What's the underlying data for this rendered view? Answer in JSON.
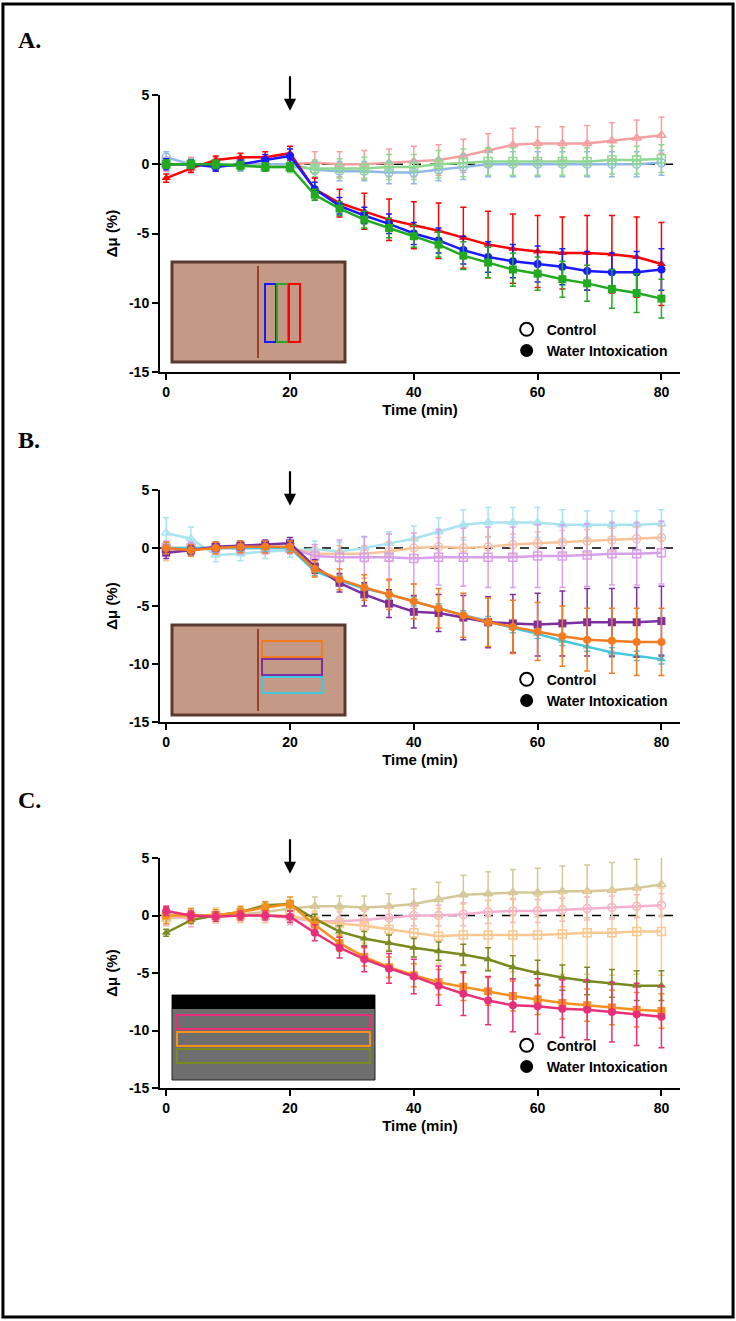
{
  "chart_data": [
    {
      "type": "line",
      "title": "A.",
      "x_label": "Time (min)",
      "y_label": "Δμ (%)",
      "x": [
        0,
        4,
        8,
        12,
        16,
        20,
        24,
        28,
        32,
        36,
        40,
        44,
        48,
        52,
        56,
        60,
        64,
        68,
        72,
        76,
        80
      ],
      "xlim": [
        -1,
        83
      ],
      "xticks": [
        0,
        20,
        40,
        60,
        80
      ],
      "ylim": [
        -15,
        5
      ],
      "yticks": [
        -15,
        -10,
        -5,
        0,
        5
      ],
      "arrow_x": 20,
      "legend": "lower right",
      "grid": false,
      "series": [
        {
          "name": "Control",
          "color": "#f4a0a0",
          "marker": "triangle-up-open",
          "line_style": "solid",
          "values": [
            0,
            0,
            0,
            0,
            0,
            0,
            0.1,
            0,
            0,
            0.1,
            0.2,
            0.3,
            0.6,
            1.0,
            1.4,
            1.5,
            1.5,
            1.5,
            1.7,
            1.9,
            2.1
          ],
          "error": [
            0.5,
            0.5,
            0.5,
            0.5,
            0.5,
            0.6,
            0.8,
            0.9,
            1.0,
            1.0,
            1.1,
            1.1,
            1.2,
            1.2,
            1.2,
            1.2,
            1.2,
            1.3,
            1.3,
            1.3,
            1.3
          ]
        },
        {
          "name": "Control",
          "color": "#90b8e8",
          "marker": "circle-open",
          "line_style": "solid",
          "values": [
            0.5,
            0,
            -0.1,
            -0.1,
            0,
            0,
            -0.4,
            -0.5,
            -0.5,
            -0.6,
            -0.6,
            -0.4,
            -0.2,
            0,
            0,
            0,
            0,
            0,
            0,
            0,
            0.1
          ],
          "error": [
            0.4,
            0.4,
            0.4,
            0.4,
            0.4,
            0.4,
            0.6,
            0.7,
            0.7,
            0.8,
            0.8,
            0.8,
            0.9,
            0.9,
            0.9,
            0.9,
            0.9,
            0.9,
            0.9,
            0.9,
            0.9
          ]
        },
        {
          "name": "Control",
          "color": "#90d890",
          "marker": "square-open",
          "line_style": "solid",
          "values": [
            0,
            0,
            0,
            0,
            -0.2,
            -0.2,
            -0.3,
            -0.3,
            -0.3,
            -0.2,
            -0.2,
            0,
            0.1,
            0.2,
            0.2,
            0.2,
            0.2,
            0.2,
            0.3,
            0.3,
            0.4
          ],
          "error": [
            0.3,
            0.3,
            0.3,
            0.3,
            0.3,
            0.4,
            0.6,
            0.7,
            0.8,
            0.9,
            0.9,
            1.0,
            1.0,
            1.0,
            1.0,
            1.0,
            1.0,
            1.0,
            1.0,
            1.0,
            1.0
          ]
        },
        {
          "name": "Water Intoxication",
          "color": "#ff0000",
          "marker": "triangle-up",
          "line_style": "solid",
          "values": [
            -1,
            -0.3,
            0.3,
            0.5,
            0.5,
            0.8,
            -1.8,
            -2.8,
            -3.4,
            -4.0,
            -4.4,
            -4.8,
            -5.3,
            -5.8,
            -6.1,
            -6.3,
            -6.4,
            -6.4,
            -6.5,
            -6.7,
            -7.2
          ],
          "error": [
            0.3,
            0.3,
            0.3,
            0.3,
            0.4,
            0.5,
            0.8,
            1.0,
            1.3,
            1.5,
            1.7,
            2.0,
            2.2,
            2.4,
            2.5,
            2.6,
            2.6,
            2.7,
            2.8,
            2.9,
            3.0
          ]
        },
        {
          "name": "Water Intoxication",
          "color": "#1a1aff",
          "marker": "circle",
          "line_style": "solid",
          "values": [
            0,
            0,
            -0.2,
            0,
            0.3,
            0.6,
            -1.8,
            -3.0,
            -3.7,
            -4.3,
            -5.0,
            -5.5,
            -6.2,
            -6.7,
            -7.0,
            -7.2,
            -7.4,
            -7.7,
            -7.8,
            -7.8,
            -7.6
          ],
          "error": [
            0.4,
            0.3,
            0.3,
            0.3,
            0.4,
            0.5,
            0.5,
            0.6,
            0.6,
            0.7,
            0.8,
            0.9,
            1.0,
            1.1,
            1.2,
            1.3,
            1.3,
            1.4,
            1.4,
            1.5,
            1.5
          ]
        },
        {
          "name": "Water Intoxication",
          "color": "#22aa22",
          "marker": "square",
          "line_style": "solid",
          "values": [
            0,
            0,
            0,
            -0.1,
            -0.2,
            -0.2,
            -2.2,
            -3.2,
            -4.0,
            -4.6,
            -5.2,
            -5.8,
            -6.6,
            -7.1,
            -7.6,
            -7.9,
            -8.3,
            -8.6,
            -9.0,
            -9.3,
            -9.7
          ],
          "error": [
            0.3,
            0.3,
            0.3,
            0.3,
            0.3,
            0.3,
            0.4,
            0.5,
            0.6,
            0.7,
            0.8,
            0.9,
            1.0,
            1.1,
            1.2,
            1.2,
            1.3,
            1.3,
            1.4,
            1.4,
            1.4
          ]
        }
      ]
    },
    {
      "type": "line",
      "title": "B.",
      "x_label": "Time (min)",
      "y_label": "Δμ (%)",
      "x": [
        0,
        4,
        8,
        12,
        16,
        20,
        24,
        28,
        32,
        36,
        40,
        44,
        48,
        52,
        56,
        60,
        64,
        68,
        72,
        76,
        80
      ],
      "xlim": [
        -1,
        83
      ],
      "xticks": [
        0,
        20,
        40,
        60,
        80
      ],
      "ylim": [
        -15,
        5
      ],
      "yticks": [
        -15,
        -10,
        -5,
        0,
        5
      ],
      "arrow_x": 20,
      "legend": "lower right",
      "grid": false,
      "series": [
        {
          "name": "Control",
          "color": "#a8e4f0",
          "marker": "triangle-up-open",
          "line_style": "solid",
          "values": [
            1.3,
            0.8,
            -0.6,
            -0.5,
            -0.3,
            -0.2,
            -0.1,
            -0.3,
            0,
            0.4,
            0.8,
            1.4,
            2.0,
            2.2,
            2.2,
            2.2,
            2.0,
            2.0,
            2.0,
            2.0,
            2.1
          ],
          "error": [
            1.3,
            1.0,
            0.6,
            0.6,
            0.6,
            0.6,
            0.7,
            0.8,
            0.9,
            1.0,
            1.1,
            1.2,
            1.3,
            1.3,
            1.3,
            1.3,
            1.3,
            1.2,
            1.2,
            1.2,
            1.2
          ]
        },
        {
          "name": "Control",
          "color": "#f6c49a",
          "marker": "circle-open",
          "line_style": "solid",
          "values": [
            -0.3,
            -0.1,
            0,
            0,
            0,
            0,
            -0.5,
            -0.5,
            -0.5,
            -0.3,
            0,
            0.1,
            0,
            0.1,
            0.3,
            0.4,
            0.5,
            0.6,
            0.7,
            0.8,
            0.9
          ],
          "error": [
            0.8,
            0.6,
            0.5,
            0.5,
            0.5,
            0.5,
            0.6,
            0.7,
            0.7,
            0.8,
            0.8,
            0.8,
            0.9,
            0.9,
            0.9,
            1.0,
            1.0,
            1.0,
            1.0,
            1.0,
            1.0
          ]
        },
        {
          "name": "Control",
          "color": "#d8a0e8",
          "marker": "square-open",
          "line_style": "solid",
          "values": [
            0,
            0,
            0,
            0,
            0,
            0,
            -0.7,
            -0.8,
            -0.8,
            -0.8,
            -0.9,
            -0.8,
            -0.8,
            -0.8,
            -0.8,
            -0.7,
            -0.7,
            -0.6,
            -0.5,
            -0.5,
            -0.4
          ],
          "error": [
            0.6,
            0.5,
            0.5,
            0.5,
            0.5,
            0.5,
            1.0,
            1.5,
            1.8,
            2.0,
            2.2,
            2.4,
            2.5,
            2.6,
            2.6,
            2.7,
            2.7,
            2.7,
            2.7,
            2.7,
            2.7
          ]
        },
        {
          "name": "Water Intoxication",
          "color": "#40c8e0",
          "marker": "triangle-up",
          "line_style": "solid",
          "values": [
            0,
            0,
            0,
            0,
            0,
            0,
            -2.0,
            -2.8,
            -3.5,
            -4.0,
            -4.6,
            -5.2,
            -5.8,
            -6.3,
            -6.9,
            -7.4,
            -8.0,
            -8.5,
            -9.0,
            -9.3,
            -9.6
          ],
          "error": [
            0.3,
            0.3,
            0.3,
            0.3,
            0.3,
            0.3,
            0.4,
            0.4,
            0.4,
            0.4,
            0.4,
            0.4,
            0.4,
            0.4,
            0.4,
            0.4,
            0.4,
            0.4,
            0.4,
            0.4,
            0.4
          ]
        },
        {
          "name": "Water Intoxication",
          "color": "#7b2fa0",
          "marker": "square",
          "line_style": "solid",
          "values": [
            -0.4,
            -0.2,
            0.1,
            0.2,
            0.3,
            0.4,
            -1.6,
            -3.0,
            -4.0,
            -4.8,
            -5.5,
            -5.6,
            -6.0,
            -6.4,
            -6.5,
            -6.6,
            -6.5,
            -6.4,
            -6.4,
            -6.4,
            -6.3
          ],
          "error": [
            0.5,
            0.4,
            0.4,
            0.4,
            0.4,
            0.5,
            0.6,
            0.8,
            1.0,
            1.2,
            1.4,
            1.6,
            1.9,
            2.2,
            2.5,
            2.7,
            2.8,
            2.9,
            2.9,
            3.0,
            3.0
          ]
        },
        {
          "name": "Water Intoxication",
          "color": "#f47c20",
          "marker": "circle",
          "line_style": "solid",
          "values": [
            0,
            -0.2,
            0,
            0.1,
            0.1,
            0.1,
            -1.8,
            -2.7,
            -3.4,
            -4.0,
            -4.6,
            -5.2,
            -5.8,
            -6.4,
            -6.8,
            -7.2,
            -7.6,
            -7.9,
            -8.0,
            -8.1,
            -8.1
          ],
          "error": [
            0.5,
            0.5,
            0.5,
            0.5,
            0.5,
            0.5,
            0.7,
            0.9,
            1.1,
            1.3,
            1.5,
            1.7,
            1.9,
            2.1,
            2.3,
            2.5,
            2.6,
            2.7,
            2.8,
            2.9,
            2.9
          ]
        }
      ]
    },
    {
      "type": "line",
      "title": "C.",
      "x_label": "Time (min)",
      "y_label": "Δμ (%)",
      "x": [
        0,
        4,
        8,
        12,
        16,
        20,
        24,
        28,
        32,
        36,
        40,
        44,
        48,
        52,
        56,
        60,
        64,
        68,
        72,
        76,
        80
      ],
      "xlim": [
        -1,
        83
      ],
      "xticks": [
        0,
        20,
        40,
        60,
        80
      ],
      "ylim": [
        -15,
        5
      ],
      "yticks": [
        -15,
        -10,
        -5,
        0,
        5
      ],
      "arrow_x": 20,
      "legend": "lower right",
      "grid": false,
      "series": [
        {
          "name": "Control",
          "color": "#d4c898",
          "marker": "triangle-up-open",
          "line_style": "solid",
          "values": [
            -0.3,
            0,
            0,
            0.1,
            0.3,
            0.6,
            0.8,
            0.8,
            0.7,
            0.8,
            1.0,
            1.4,
            1.8,
            1.9,
            2.0,
            2.0,
            2.1,
            2.1,
            2.2,
            2.4,
            2.7
          ],
          "error": [
            0.6,
            0.6,
            0.6,
            0.6,
            0.6,
            0.7,
            0.8,
            0.9,
            1.0,
            1.1,
            1.3,
            1.5,
            1.7,
            1.9,
            2.0,
            2.1,
            2.2,
            2.3,
            2.4,
            2.5,
            2.7
          ]
        },
        {
          "name": "Control",
          "color": "#f4b0d0",
          "marker": "circle-open",
          "line_style": "solid",
          "values": [
            0,
            -0.3,
            0,
            0,
            0,
            -0.2,
            -0.5,
            -0.5,
            -0.4,
            -0.2,
            0,
            0,
            0.1,
            0.3,
            0.4,
            0.4,
            0.5,
            0.6,
            0.7,
            0.8,
            0.9
          ],
          "error": [
            0.8,
            0.7,
            0.6,
            0.6,
            0.6,
            0.6,
            0.7,
            0.8,
            0.8,
            0.9,
            0.9,
            0.9,
            1.0,
            1.0,
            1.0,
            1.0,
            1.0,
            1.0,
            1.0,
            1.0,
            1.0
          ]
        },
        {
          "name": "Control",
          "color": "#f8c890",
          "marker": "square-open",
          "line_style": "solid",
          "values": [
            0,
            -0.1,
            0,
            0,
            0,
            0,
            -0.5,
            -0.7,
            -0.9,
            -1.2,
            -1.5,
            -1.8,
            -1.7,
            -1.7,
            -1.7,
            -1.7,
            -1.6,
            -1.5,
            -1.5,
            -1.4,
            -1.4
          ],
          "error": [
            0.7,
            0.6,
            0.6,
            0.6,
            0.6,
            0.6,
            0.9,
            1.2,
            1.5,
            1.8,
            2.1,
            2.4,
            2.7,
            3.0,
            3.2,
            3.4,
            3.5,
            3.6,
            3.7,
            3.7,
            3.8
          ]
        },
        {
          "name": "Water Intoxication",
          "color": "#7a8a20",
          "marker": "triangle-up",
          "line_style": "solid",
          "values": [
            -1.5,
            -0.4,
            0,
            0.3,
            0.9,
            1.0,
            -0.3,
            -1.4,
            -2.0,
            -2.4,
            -2.8,
            -3.1,
            -3.4,
            -3.8,
            -4.5,
            -5.0,
            -5.4,
            -5.7,
            -5.9,
            -6.1,
            -6.1
          ],
          "error": [
            0.3,
            0.3,
            0.3,
            0.3,
            0.3,
            0.3,
            0.4,
            0.5,
            0.6,
            0.7,
            0.8,
            0.8,
            0.9,
            1.0,
            1.0,
            1.1,
            1.1,
            1.2,
            1.2,
            1.3,
            1.3
          ]
        },
        {
          "name": "Water Intoxication",
          "color": "#f5901e",
          "marker": "square",
          "line_style": "solid",
          "values": [
            0,
            0,
            0,
            0.3,
            0.7,
            1.0,
            -0.8,
            -2.4,
            -3.6,
            -4.5,
            -5.2,
            -5.8,
            -6.2,
            -6.6,
            -7.0,
            -7.3,
            -7.6,
            -7.8,
            -8.0,
            -8.2,
            -8.3
          ],
          "error": [
            0.7,
            0.6,
            0.5,
            0.5,
            0.5,
            0.6,
            0.6,
            0.7,
            0.8,
            0.9,
            1.0,
            1.1,
            1.2,
            1.2,
            1.3,
            1.3,
            1.4,
            1.4,
            1.5,
            1.5,
            1.5
          ]
        },
        {
          "name": "Water Intoxication",
          "color": "#e8307a",
          "marker": "circle",
          "line_style": "solid",
          "values": [
            0.4,
            0,
            -0.1,
            0,
            0,
            -0.1,
            -1.5,
            -2.8,
            -3.8,
            -4.6,
            -5.3,
            -6.1,
            -6.8,
            -7.4,
            -7.8,
            -7.9,
            -8.1,
            -8.2,
            -8.4,
            -8.6,
            -8.8
          ],
          "error": [
            0.4,
            0.4,
            0.4,
            0.4,
            0.4,
            0.5,
            0.7,
            0.9,
            1.1,
            1.3,
            1.5,
            1.7,
            1.9,
            2.1,
            2.3,
            2.4,
            2.5,
            2.6,
            2.6,
            2.7,
            2.7
          ]
        }
      ]
    }
  ]
}
